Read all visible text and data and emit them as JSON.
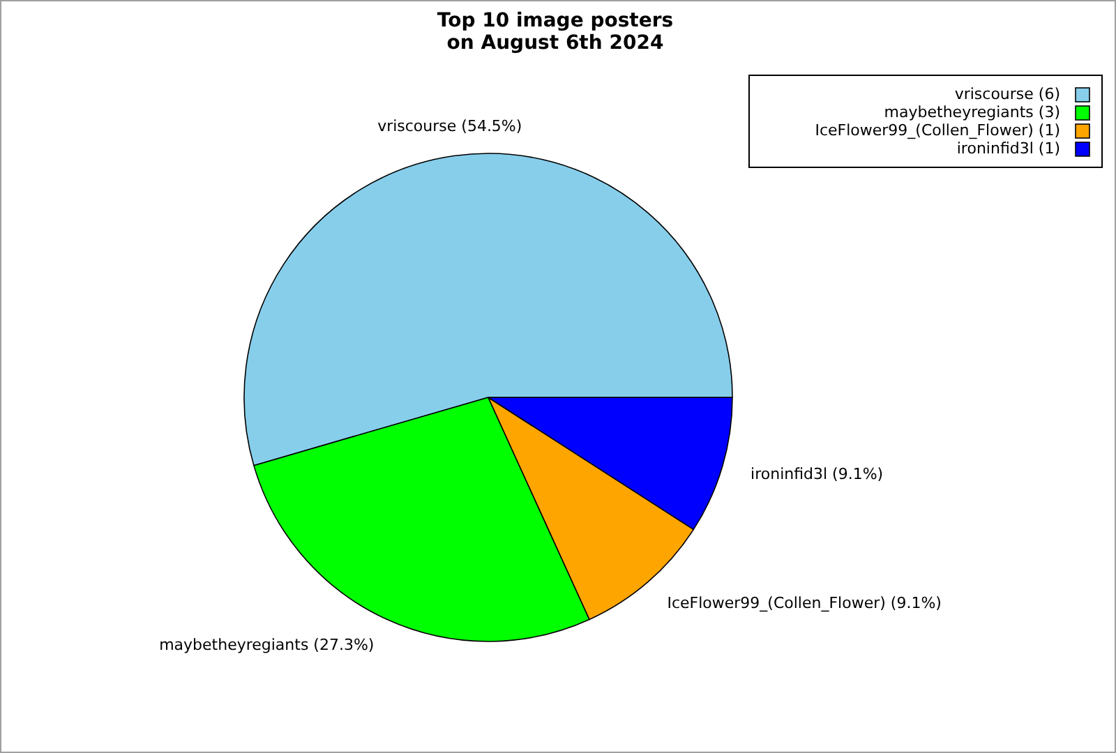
{
  "chart_data": {
    "type": "pie",
    "title": "Top 10 image posters\non August 6th 2024",
    "categories": [
      "vriscourse (6)",
      "maybetheyregiants (3)",
      "IceFlower99_(Collen_Flower) (1)",
      "ironinfid3l (1)"
    ],
    "values": [
      54.5,
      27.3,
      9.1,
      9.1
    ],
    "colors": [
      "#87ceeb",
      "#00ff00",
      "#ffa500",
      "#0000ff"
    ],
    "value_labels": [
      "vriscourse (54.5%)",
      "maybetheyregiants (27.3%)",
      "IceFlower99_(Collen_Flower) (9.1%)",
      "ironinfid3l (9.1%)"
    ],
    "legend": "top right"
  }
}
